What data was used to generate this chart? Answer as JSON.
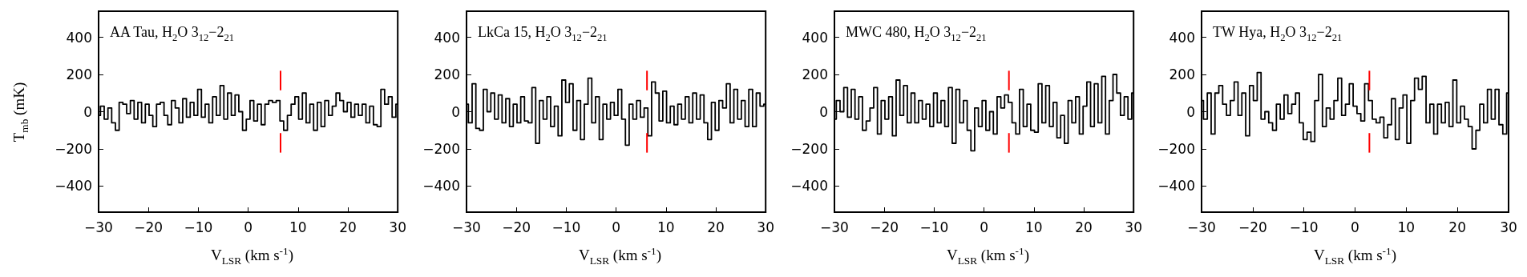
{
  "chart_data": [
    {
      "type": "step",
      "title": "AA Tau, H$_{2}$O 3$_{12}$−2$_{21}$",
      "xlabel": "V$_{LSR}$ (km s$^{-1}$)",
      "ylabel": "T$_{mb}$ (mK)",
      "xlim": [
        -30,
        30
      ],
      "xticks": [
        -30,
        -20,
        -10,
        0,
        10,
        20,
        30
      ],
      "ylim": [
        -540,
        540
      ],
      "yticks": [
        -400,
        -200,
        0,
        200,
        400
      ],
      "marker": "none",
      "x": [
        -30,
        -29.25,
        -28.5,
        -27.75,
        -27,
        -26.25,
        -25.5,
        -24.75,
        -24,
        -23.25,
        -22.5,
        -21.75,
        -21,
        -20.25,
        -19.5,
        -18.75,
        -18,
        -17.25,
        -16.5,
        -15.75,
        -15,
        -14.25,
        -13.5,
        -12.75,
        -12,
        -11.25,
        -10.5,
        -9.75,
        -9,
        -8.25,
        -7.5,
        -6.75,
        -6,
        -5.25,
        -4.5,
        -3.75,
        -3,
        -2.25,
        -1.5,
        -0.75,
        0,
        0.75,
        1.5,
        2.25,
        3,
        3.75,
        4.5,
        5.25,
        6,
        6.75,
        7.5,
        8.25,
        9,
        9.75,
        10.5,
        11.25,
        12,
        12.75,
        13.5,
        14.25,
        15,
        15.75,
        16.5,
        17.25,
        18,
        18.75,
        19.5,
        20.25,
        21,
        21.75,
        22.5,
        23.25,
        24,
        24.75,
        25.5,
        26.25,
        27,
        27.75,
        28.5,
        29.25,
        30
      ],
      "series": [
        {
          "color": "#000000",
          "values": [
            -20,
            30,
            -40,
            20,
            -60,
            -100,
            50,
            40,
            -10,
            60,
            -40,
            50,
            -60,
            40,
            -20,
            -80,
            40,
            50,
            -20,
            -70,
            60,
            20,
            -60,
            70,
            -30,
            50,
            -20,
            120,
            -30,
            40,
            -60,
            80,
            -20,
            140,
            -40,
            100,
            -20,
            90,
            0,
            -100,
            -40,
            60,
            -50,
            40,
            -70,
            40,
            60,
            50,
            60,
            -50,
            -100,
            -20,
            40,
            80,
            -40,
            100,
            -60,
            40,
            -100,
            50,
            -80,
            60,
            -20,
            30,
            100,
            60,
            0,
            50,
            -30,
            40,
            -20,
            40,
            -60,
            30,
            -70,
            -80,
            120,
            40,
            80,
            -30,
            40
          ]
        },
        {
          "type": "line",
          "color": "#ff0000",
          "x": [
            6.5,
            6.5
          ],
          "values": [
            115,
            220
          ]
        },
        {
          "type": "line",
          "color": "#ff0000",
          "x": [
            6.5,
            6.5
          ],
          "values": [
            -115,
            -220
          ]
        }
      ]
    },
    {
      "type": "step",
      "title": "LkCa 15, H$_{2}$O 3$_{12}$−2$_{21}$",
      "xlabel": "V$_{LSR}$ (km s$^{-1}$)",
      "xlim": [
        -30,
        30
      ],
      "xticks": [
        -30,
        -20,
        -10,
        0,
        10,
        20,
        30
      ],
      "ylim": [
        -540,
        540
      ],
      "yticks": [
        -400,
        -200,
        0,
        200,
        400
      ],
      "marker": "none",
      "x": [
        -30,
        -29.25,
        -28.5,
        -27.75,
        -27,
        -26.25,
        -25.5,
        -24.75,
        -24,
        -23.25,
        -22.5,
        -21.75,
        -21,
        -20.25,
        -19.5,
        -18.75,
        -18,
        -17.25,
        -16.5,
        -15.75,
        -15,
        -14.25,
        -13.5,
        -12.75,
        -12,
        -11.25,
        -10.5,
        -9.75,
        -9,
        -8.25,
        -7.5,
        -6.75,
        -6,
        -5.25,
        -4.5,
        -3.75,
        -3,
        -2.25,
        -1.5,
        -0.75,
        0,
        0.75,
        1.5,
        2.25,
        3,
        3.75,
        4.5,
        5.25,
        6,
        6.75,
        7.5,
        8.25,
        9,
        9.75,
        10.5,
        11.25,
        12,
        12.75,
        13.5,
        14.25,
        15,
        15.75,
        16.5,
        17.25,
        18,
        18.75,
        19.5,
        20.25,
        21,
        21.75,
        22.5,
        23.25,
        24,
        24.75,
        25.5,
        26.25,
        27,
        27.75,
        28.5,
        29.25,
        30
      ],
      "series": [
        {
          "color": "#000000",
          "values": [
            40,
            -60,
            150,
            -90,
            -100,
            120,
            0,
            100,
            -40,
            90,
            -60,
            70,
            -80,
            40,
            -60,
            80,
            -50,
            -60,
            130,
            -170,
            60,
            -40,
            80,
            -80,
            30,
            -130,
            170,
            50,
            150,
            -100,
            60,
            -150,
            40,
            180,
            -60,
            80,
            -150,
            40,
            -40,
            50,
            -20,
            120,
            -40,
            -180,
            40,
            -40,
            60,
            -30,
            20,
            -130,
            160,
            100,
            -50,
            110,
            -60,
            30,
            -70,
            40,
            -40,
            80,
            -60,
            100,
            -40,
            90,
            -60,
            -150,
            50,
            -100,
            60,
            20,
            150,
            -60,
            120,
            -40,
            60,
            -80,
            120,
            -80,
            100,
            30,
            40
          ]
        },
        {
          "type": "line",
          "color": "#ff0000",
          "x": [
            6.2,
            6.2
          ],
          "values": [
            115,
            220
          ]
        },
        {
          "type": "line",
          "color": "#ff0000",
          "x": [
            6.2,
            6.2
          ],
          "values": [
            -115,
            -220
          ]
        }
      ]
    },
    {
      "type": "step",
      "title": "MWC 480, H$_{2}$O 3$_{12}$−2$_{21}$",
      "xlabel": "V$_{LSR}$ (km s$^{-1}$)",
      "xlim": [
        -30,
        30
      ],
      "xticks": [
        -30,
        -20,
        -10,
        0,
        10,
        20,
        30
      ],
      "ylim": [
        -540,
        540
      ],
      "yticks": [
        -400,
        -200,
        0,
        200,
        400
      ],
      "marker": "none",
      "x": [
        -30,
        -29.25,
        -28.5,
        -27.75,
        -27,
        -26.25,
        -25.5,
        -24.75,
        -24,
        -23.25,
        -22.5,
        -21.75,
        -21,
        -20.25,
        -19.5,
        -18.75,
        -18,
        -17.25,
        -16.5,
        -15.75,
        -15,
        -14.25,
        -13.5,
        -12.75,
        -12,
        -11.25,
        -10.5,
        -9.75,
        -9,
        -8.25,
        -7.5,
        -6.75,
        -6,
        -5.25,
        -4.5,
        -3.75,
        -3,
        -2.25,
        -1.5,
        -0.75,
        0,
        0.75,
        1.5,
        2.25,
        3,
        3.75,
        4.5,
        5.25,
        6,
        6.75,
        7.5,
        8.25,
        9,
        9.75,
        10.5,
        11.25,
        12,
        12.75,
        13.5,
        14.25,
        15,
        15.75,
        16.5,
        17.25,
        18,
        18.75,
        19.5,
        20.25,
        21,
        21.75,
        22.5,
        23.25,
        24,
        24.75,
        25.5,
        26.25,
        27,
        27.75,
        28.5,
        29.25,
        30
      ],
      "series": [
        {
          "color": "#000000",
          "values": [
            -40,
            60,
            0,
            130,
            -30,
            120,
            -40,
            80,
            -100,
            -50,
            20,
            130,
            -120,
            60,
            -40,
            80,
            -130,
            170,
            -20,
            140,
            -60,
            100,
            -60,
            60,
            -40,
            40,
            -80,
            100,
            -60,
            60,
            -80,
            130,
            -170,
            120,
            -60,
            60,
            -100,
            -210,
            20,
            -80,
            60,
            -100,
            0,
            -120,
            80,
            20,
            90,
            50,
            -60,
            -120,
            120,
            -80,
            40,
            -100,
            -110,
            150,
            -60,
            140,
            -80,
            50,
            -140,
            -20,
            -170,
            60,
            -60,
            80,
            -120,
            30,
            160,
            -80,
            150,
            -60,
            190,
            -120,
            60,
            200,
            100,
            -20,
            80,
            -40,
            100
          ]
        },
        {
          "type": "line",
          "color": "#ff0000",
          "x": [
            5,
            5
          ],
          "values": [
            115,
            220
          ]
        },
        {
          "type": "line",
          "color": "#ff0000",
          "x": [
            5,
            5
          ],
          "values": [
            -115,
            -220
          ]
        }
      ]
    },
    {
      "type": "step",
      "title": "TW Hya, H$_{2}$O 3$_{12}$−2$_{21}$",
      "xlabel": "V$_{LSR}$ (km s$^{-1}$)",
      "xlim": [
        -30,
        30
      ],
      "xticks": [
        -30,
        -20,
        -10,
        0,
        10,
        20,
        30
      ],
      "ylim": [
        -540,
        540
      ],
      "yticks": [
        -400,
        -200,
        0,
        200,
        400
      ],
      "marker": "none",
      "x": [
        -30,
        -29.25,
        -28.5,
        -27.75,
        -27,
        -26.25,
        -25.5,
        -24.75,
        -24,
        -23.25,
        -22.5,
        -21.75,
        -21,
        -20.25,
        -19.5,
        -18.75,
        -18,
        -17.25,
        -16.5,
        -15.75,
        -15,
        -14.25,
        -13.5,
        -12.75,
        -12,
        -11.25,
        -10.5,
        -9.75,
        -9,
        -8.25,
        -7.5,
        -6.75,
        -6,
        -5.25,
        -4.5,
        -3.75,
        -3,
        -2.25,
        -1.5,
        -0.75,
        0,
        0.75,
        1.5,
        2.25,
        3,
        3.75,
        4.5,
        5.25,
        6,
        6.75,
        7.5,
        8.25,
        9,
        9.75,
        10.5,
        11.25,
        12,
        12.75,
        13.5,
        14.25,
        15,
        15.75,
        16.5,
        17.25,
        18,
        18.75,
        19.5,
        20.25,
        21,
        21.75,
        22.5,
        23.25,
        24,
        24.75,
        25.5,
        26.25,
        27,
        27.75,
        28.5,
        29.25,
        30
      ],
      "series": [
        {
          "color": "#000000",
          "values": [
            60,
            -40,
            100,
            -120,
            100,
            140,
            40,
            -20,
            60,
            160,
            -20,
            100,
            -130,
            140,
            60,
            210,
            -40,
            0,
            -60,
            -100,
            40,
            -40,
            90,
            -10,
            40,
            100,
            -60,
            -150,
            -110,
            -160,
            60,
            200,
            -80,
            20,
            -40,
            60,
            180,
            -20,
            40,
            150,
            30,
            -10,
            -50,
            150,
            60,
            -40,
            -60,
            -30,
            -140,
            -70,
            70,
            -150,
            20,
            90,
            -170,
            60,
            180,
            120,
            190,
            -60,
            40,
            -120,
            40,
            -60,
            50,
            -80,
            170,
            -60,
            30,
            -40,
            -80,
            -200,
            -100,
            40,
            -60,
            120,
            -40,
            120,
            -70,
            -120,
            100
          ]
        },
        {
          "type": "line",
          "color": "#ff0000",
          "x": [
            2.8,
            2.8
          ],
          "values": [
            115,
            220
          ]
        },
        {
          "type": "line",
          "color": "#ff0000",
          "x": [
            2.8,
            2.8
          ],
          "values": [
            -115,
            -220
          ]
        }
      ]
    }
  ]
}
